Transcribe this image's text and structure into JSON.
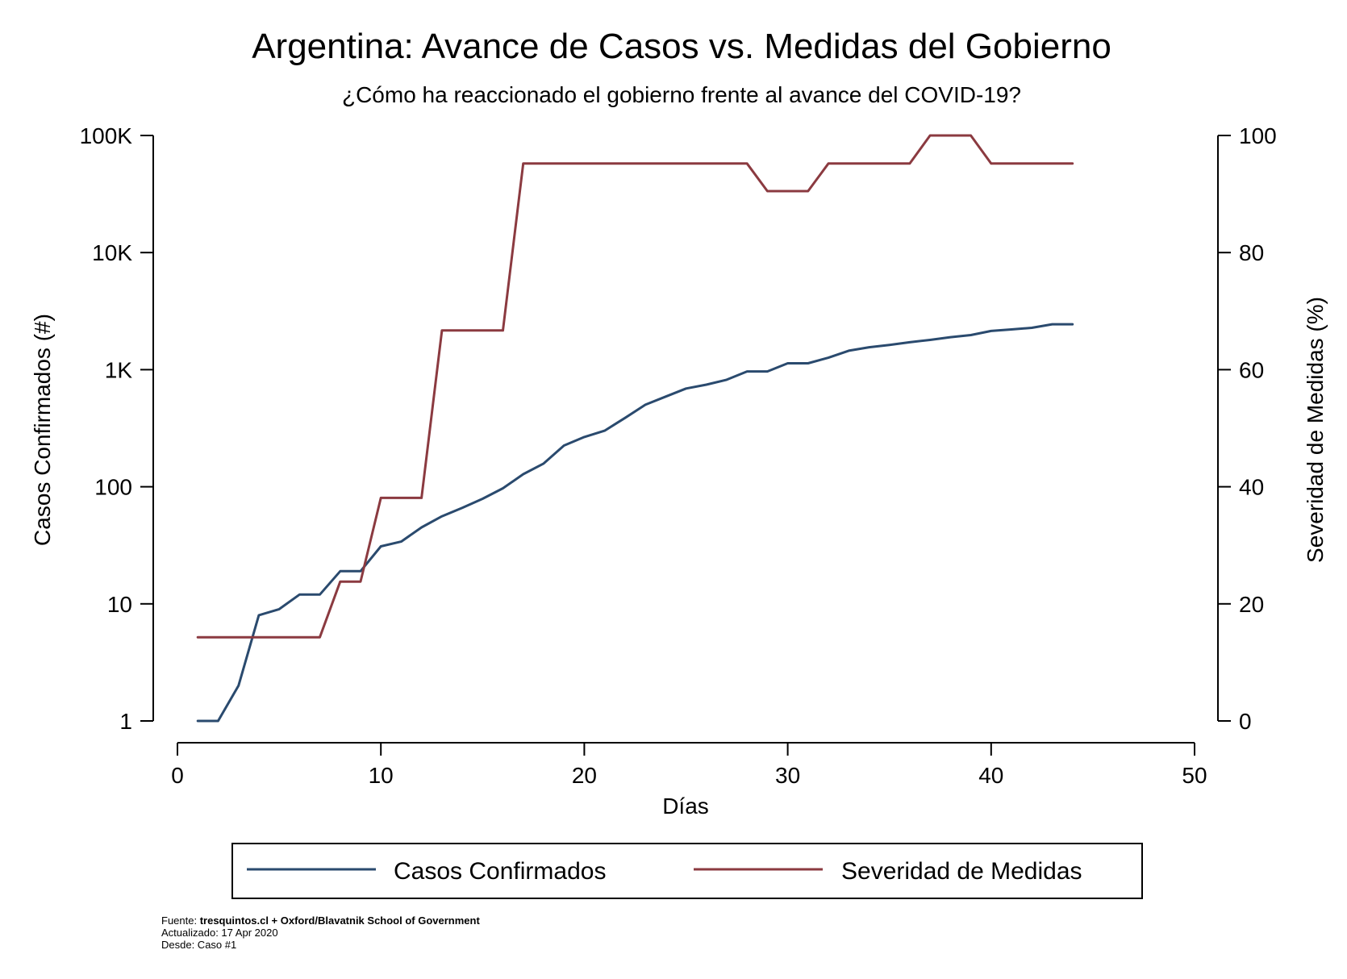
{
  "chart_data": {
    "type": "line",
    "title": "Argentina: Avance de Casos vs. Medidas del Gobierno",
    "subtitle": "¿Cómo ha reaccionado el gobierno frente al avance del COVID-19?",
    "xlabel": "Días",
    "ylabel_left": "Casos Confirmados (#)",
    "ylabel_right": "Severidad de Medidas (%)",
    "xlim": [
      0,
      50
    ],
    "x_ticks": [
      0,
      10,
      20,
      30,
      40,
      50
    ],
    "y_left_scale": "log",
    "y_left_lim": [
      1,
      100000
    ],
    "y_left_ticks": [
      {
        "value": 1,
        "label": "1"
      },
      {
        "value": 10,
        "label": "10"
      },
      {
        "value": 100,
        "label": "100"
      },
      {
        "value": 1000,
        "label": "1K"
      },
      {
        "value": 10000,
        "label": "10K"
      },
      {
        "value": 100000,
        "label": "100K"
      }
    ],
    "y_right_lim": [
      0,
      100
    ],
    "y_right_ticks": [
      0,
      20,
      40,
      60,
      80,
      100
    ],
    "grid": false,
    "legend_position": "bottom",
    "series": [
      {
        "name": "Casos Confirmados",
        "axis": "left",
        "color": "#2a4a6e",
        "x": [
          1,
          2,
          3,
          4,
          5,
          6,
          7,
          8,
          9,
          10,
          11,
          12,
          13,
          14,
          15,
          16,
          17,
          18,
          19,
          20,
          21,
          22,
          23,
          24,
          25,
          26,
          27,
          28,
          29,
          30,
          31,
          32,
          33,
          34,
          35,
          36,
          37,
          38,
          39,
          40,
          41,
          42,
          43,
          44
        ],
        "values": [
          1,
          1,
          2,
          8,
          9,
          12,
          12,
          19,
          19,
          31,
          34,
          45,
          56,
          66,
          79,
          97,
          128,
          158,
          225,
          266,
          301,
          387,
          502,
          589,
          690,
          745,
          820,
          966,
          966,
          1133,
          1133,
          1265,
          1451,
          1554,
          1628,
          1715,
          1795,
          1894,
          1975,
          2142,
          2208,
          2277,
          2443,
          2443
        ]
      },
      {
        "name": "Severidad de Medidas",
        "axis": "right",
        "color": "#8b3a40",
        "x": [
          1,
          2,
          3,
          4,
          5,
          6,
          7,
          8,
          9,
          10,
          11,
          12,
          13,
          14,
          15,
          16,
          17,
          18,
          19,
          20,
          21,
          22,
          23,
          24,
          25,
          26,
          27,
          28,
          29,
          30,
          31,
          32,
          33,
          34,
          35,
          36,
          37,
          38,
          39,
          40,
          41,
          42,
          43,
          44
        ],
        "values": [
          14.3,
          14.3,
          14.3,
          14.3,
          14.3,
          14.3,
          14.3,
          23.8,
          23.8,
          38.1,
          38.1,
          38.1,
          66.7,
          66.7,
          66.7,
          66.7,
          95.2,
          95.2,
          95.2,
          95.2,
          95.2,
          95.2,
          95.2,
          95.2,
          95.2,
          95.2,
          95.2,
          95.2,
          90.5,
          90.5,
          90.5,
          95.2,
          95.2,
          95.2,
          95.2,
          95.2,
          100,
          100,
          100,
          95.2,
          95.2,
          95.2,
          95.2,
          95.2
        ]
      }
    ]
  },
  "footer": {
    "source_label": "Fuente: ",
    "source_value": "tresquintos.cl + Oxford/Blavatnik School of Government",
    "updated": "Actualizado: 17 Apr 2020",
    "since": "Desde: Caso #1"
  }
}
